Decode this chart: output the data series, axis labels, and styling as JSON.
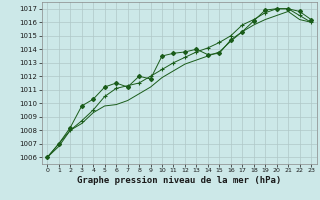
{
  "background_color": "#cce8e8",
  "grid_color": "#b0c8c8",
  "line_color": "#1a5c1a",
  "title": "Graphe pression niveau de la mer (hPa)",
  "title_fontsize": 6.5,
  "ylim": [
    1005.5,
    1017.5
  ],
  "xlim": [
    -0.5,
    23.5
  ],
  "yticks": [
    1006,
    1007,
    1008,
    1009,
    1010,
    1011,
    1012,
    1013,
    1014,
    1015,
    1016,
    1017
  ],
  "xticks": [
    0,
    1,
    2,
    3,
    4,
    5,
    6,
    7,
    8,
    9,
    10,
    11,
    12,
    13,
    14,
    15,
    16,
    17,
    18,
    19,
    20,
    21,
    22,
    23
  ],
  "line_diamond_x": [
    0,
    1,
    2,
    3,
    4,
    5,
    6,
    7,
    8,
    9,
    10,
    11,
    12,
    13,
    14,
    15,
    16,
    17,
    18,
    19,
    20,
    21,
    22,
    23
  ],
  "line_diamond_y": [
    1006.0,
    1007.0,
    1008.2,
    1009.8,
    1010.3,
    1011.2,
    1011.5,
    1011.2,
    1012.0,
    1011.8,
    1013.5,
    1013.7,
    1013.8,
    1014.0,
    1013.6,
    1013.7,
    1014.7,
    1015.3,
    1016.1,
    1016.9,
    1017.0,
    1017.0,
    1016.8,
    1016.2
  ],
  "line_cross_x": [
    0,
    1,
    2,
    3,
    4,
    5,
    6,
    7,
    8,
    9,
    10,
    11,
    12,
    13,
    14,
    15,
    16,
    17,
    18,
    19,
    20,
    21,
    22,
    23
  ],
  "line_cross_y": [
    1006.0,
    1007.0,
    1008.0,
    1008.7,
    1009.5,
    1010.5,
    1011.1,
    1011.3,
    1011.5,
    1012.0,
    1012.5,
    1013.0,
    1013.4,
    1013.8,
    1014.1,
    1014.5,
    1015.0,
    1015.8,
    1016.2,
    1016.7,
    1017.0,
    1017.0,
    1016.5,
    1016.0
  ],
  "line_plain_x": [
    0,
    1,
    2,
    3,
    4,
    5,
    6,
    7,
    8,
    9,
    10,
    11,
    12,
    13,
    14,
    15,
    16,
    17,
    18,
    19,
    20,
    21,
    22,
    23
  ],
  "line_plain_y": [
    1006.0,
    1006.8,
    1008.0,
    1008.5,
    1009.3,
    1009.8,
    1009.9,
    1010.2,
    1010.7,
    1011.2,
    1011.9,
    1012.4,
    1012.9,
    1013.2,
    1013.5,
    1013.8,
    1014.6,
    1015.3,
    1015.8,
    1016.2,
    1016.5,
    1016.8,
    1016.2,
    1016.0
  ]
}
